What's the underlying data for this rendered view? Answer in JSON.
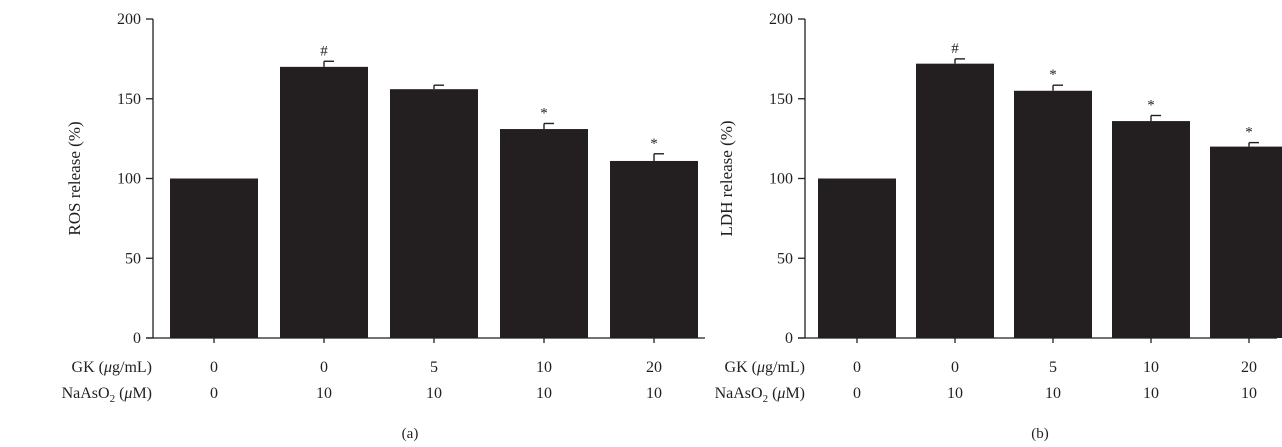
{
  "chart_data": [
    {
      "type": "bar",
      "panel_label": "(a)",
      "ylabel": "ROS release (%)",
      "ylim": [
        0,
        200
      ],
      "yticks": [
        0,
        50,
        100,
        150,
        200
      ],
      "row_labels": [
        {
          "prefix": "GK (",
          "italic": "μ",
          "suffix": "g/mL)",
          "sub": ""
        },
        {
          "prefix": "NaAsO",
          "sub": "2",
          "mid": " (",
          "italic": "μ",
          "suffix": "M)"
        }
      ],
      "gk_values": [
        "0",
        "0",
        "5",
        "10",
        "20"
      ],
      "naaso2_values": [
        "0",
        "10",
        "10",
        "10",
        "10"
      ],
      "values": [
        100,
        170,
        156,
        131,
        111
      ],
      "errors": [
        0,
        3.5,
        2.5,
        3.5,
        4.5
      ],
      "annotations": [
        "",
        "#",
        "",
        "*",
        "*"
      ],
      "bar_color": "#231f20"
    },
    {
      "type": "bar",
      "panel_label": "(b)",
      "ylabel": "LDH release (%)",
      "ylim": [
        0,
        200
      ],
      "yticks": [
        0,
        50,
        100,
        150,
        200
      ],
      "row_labels": [
        {
          "prefix": "GK (",
          "italic": "μ",
          "suffix": "g/mL)",
          "sub": ""
        },
        {
          "prefix": "NaAsO",
          "sub": "2",
          "mid": " (",
          "italic": "μ",
          "suffix": "M)"
        }
      ],
      "gk_values": [
        "0",
        "0",
        "5",
        "10",
        "20"
      ],
      "naaso2_values": [
        "0",
        "10",
        "10",
        "10",
        "10"
      ],
      "values": [
        100,
        172,
        155,
        136,
        120
      ],
      "errors": [
        0,
        3,
        3.5,
        3.5,
        2.5
      ],
      "annotations": [
        "",
        "#",
        "*",
        "*",
        "*"
      ],
      "bar_color": "#231f20"
    }
  ]
}
